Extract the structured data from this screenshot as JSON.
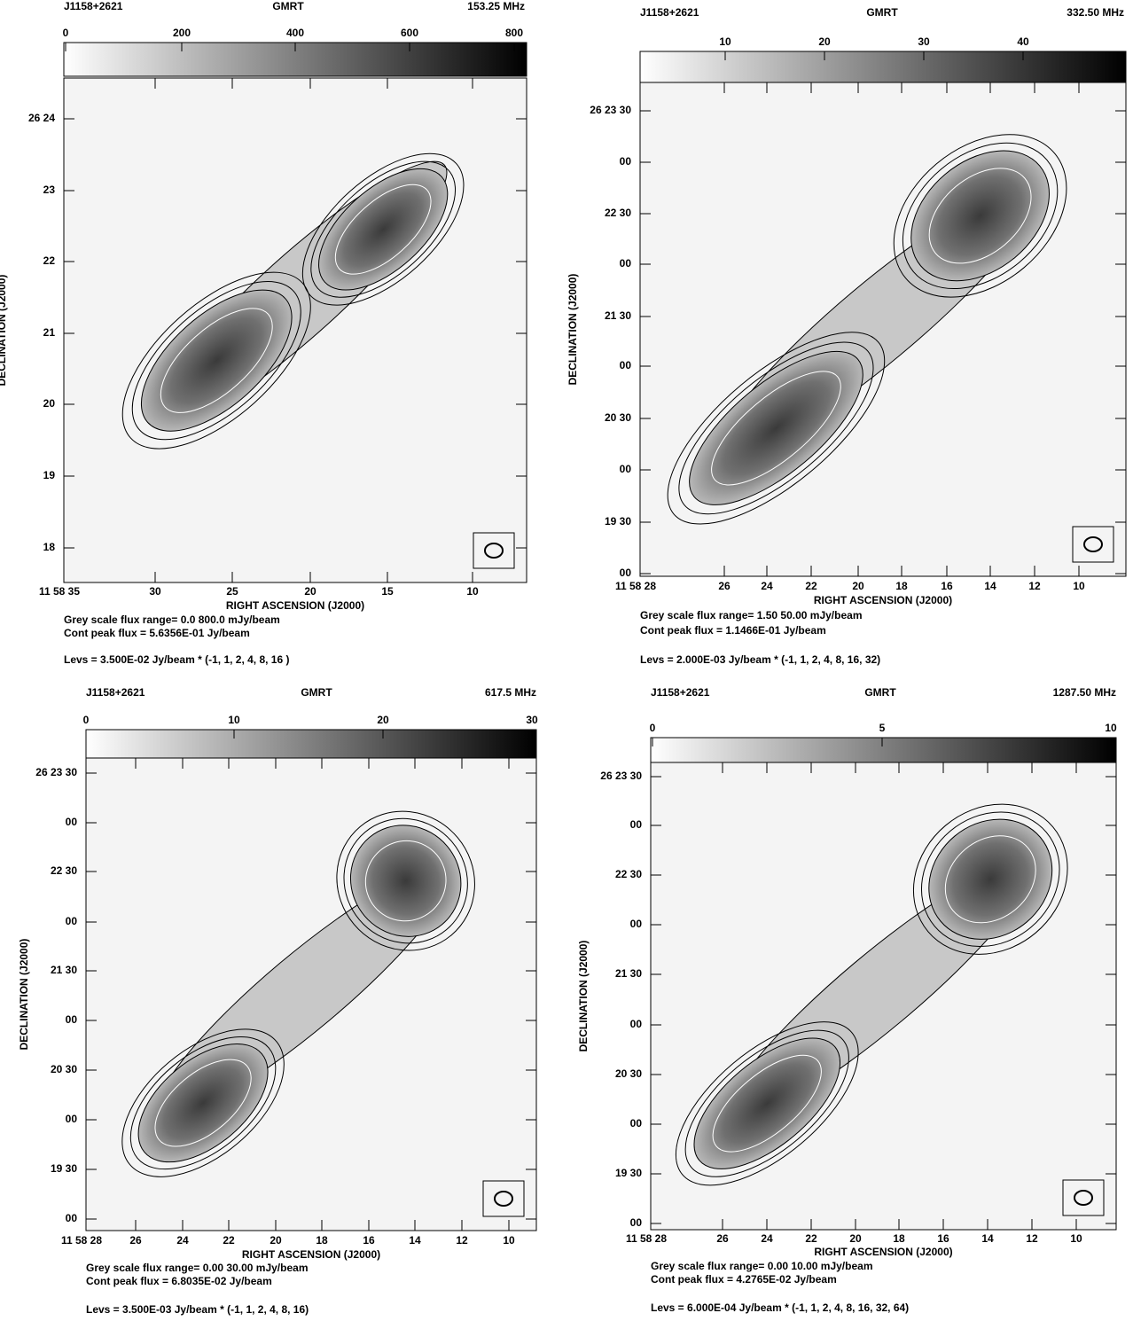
{
  "panels": [
    {
      "source": "J1158+2621",
      "telescope": "GMRT",
      "frequency": "153.25 MHz",
      "colorbar_ticks": [
        "0",
        "200",
        "400",
        "600",
        "800"
      ],
      "dec_ticks": [
        "26 24",
        "23",
        "22",
        "21",
        "20",
        "19",
        "18"
      ],
      "ra_ticks": [
        "11 58 35",
        "30",
        "25",
        "20",
        "15",
        "10"
      ],
      "x_label": "RIGHT ASCENSION (J2000)",
      "y_label": "DECLINATION (J2000)",
      "greyscale_note": "Grey scale flux range= 0.0 800.0 mJy/beam",
      "peak_note": "Cont peak flux = 5.6356E-01 Jy/beam",
      "levels_note": "Levs = 3.500E-02 Jy/beam * (-1, 1, 2, 4, 8, 16 )"
    },
    {
      "source": "J1158+2621",
      "telescope": "GMRT",
      "frequency": "332.50 MHz",
      "colorbar_ticks": [
        "10",
        "20",
        "30",
        "40"
      ],
      "dec_ticks": [
        "26 23 30",
        "00",
        "22 30",
        "00",
        "21 30",
        "00",
        "20 30",
        "00",
        "19 30",
        "00"
      ],
      "ra_ticks": [
        "11 58 28",
        "26",
        "24",
        "22",
        "20",
        "18",
        "16",
        "14",
        "12",
        "10"
      ],
      "x_label": "RIGHT ASCENSION (J2000)",
      "y_label": "DECLINATION (J2000)",
      "greyscale_note": "Grey scale flux range= 1.50 50.00 mJy/beam",
      "peak_note": "Cont peak flux =  1.1466E-01 Jy/beam",
      "levels_note": "Levs = 2.000E-03 Jy/beam * (-1, 1, 2, 4, 8, 16, 32)"
    },
    {
      "source": "J1158+2621",
      "telescope": "GMRT",
      "frequency": "617.5 MHz",
      "colorbar_ticks": [
        "0",
        "10",
        "20",
        "30"
      ],
      "dec_ticks": [
        "26 23 30",
        "00",
        "22 30",
        "00",
        "21 30",
        "00",
        "20 30",
        "00",
        "19 30",
        "00"
      ],
      "ra_ticks": [
        "11 58 28",
        "26",
        "24",
        "22",
        "20",
        "18",
        "16",
        "14",
        "12",
        "10"
      ],
      "x_label": "RIGHT ASCENSION (J2000)",
      "y_label": "DECLINATION (J2000)",
      "greyscale_note": "Grey scale flux range= 0.00 30.00 mJy/beam",
      "peak_note": "Cont peak flux =  6.8035E-02 Jy/beam",
      "levels_note": "Levs = 3.500E-03 Jy/beam * (-1, 1, 2, 4, 8, 16)"
    },
    {
      "source": "J1158+2621",
      "telescope": "GMRT",
      "frequency": "1287.50 MHz",
      "colorbar_ticks": [
        "0",
        "5",
        "10"
      ],
      "dec_ticks": [
        "26 23 30",
        "00",
        "22 30",
        "00",
        "21 30",
        "00",
        "20 30",
        "00",
        "19 30",
        "00"
      ],
      "ra_ticks": [
        "11 58 28",
        "26",
        "24",
        "22",
        "20",
        "18",
        "16",
        "14",
        "12",
        "10"
      ],
      "x_label": "RIGHT ASCENSION (J2000)",
      "y_label": "DECLINATION (J2000)",
      "greyscale_note": "Grey scale flux range= 0.00 10.00 mJy/beam",
      "peak_note": "Cont peak flux =  4.2765E-02 Jy/beam",
      "levels_note": "Levs = 6.000E-04 Jy/beam * (-1, 1, 2, 4, 8, 16, 32, 64)"
    }
  ]
}
